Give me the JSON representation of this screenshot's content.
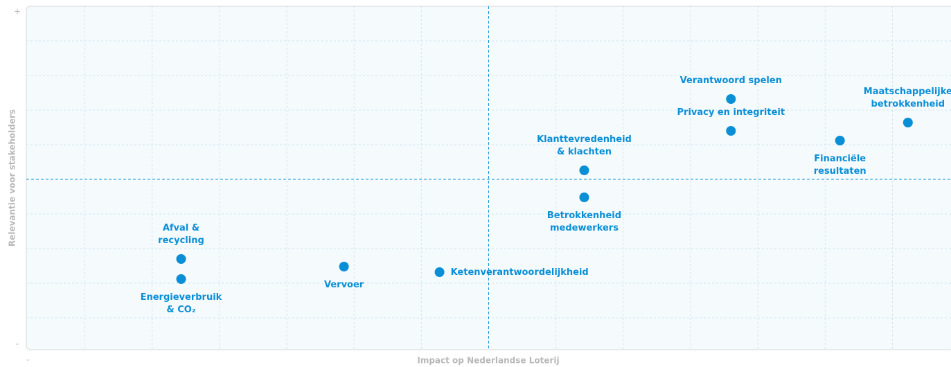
{
  "chart_data": {
    "type": "scatter",
    "xlabel": "Impact op Nederlandse Loterij",
    "ylabel": "Relevantie voor stakeholders",
    "ymax_label": "+",
    "ymin_label": "-",
    "xmin_label": "-",
    "series": [
      {
        "color": "#0a8fd6",
        "labels": [
          "Afval &\nrecycling",
          "Energieverbruik\n& CO₂",
          "Vervoer",
          "Ketenverantwoordelijkheid",
          "Klanttevredenheid\n& klachten",
          "Betrokkenheid\nmedewerkers",
          "Verantwoord spelen",
          "Privacy en integriteit",
          "Financiële\nresultaten",
          "Maatschappelijke\nbetrokkenheid"
        ],
        "x": [
          2.43,
          2.43,
          4.85,
          6.27,
          8.42,
          8.42,
          10.6,
          10.6,
          12.22,
          13.23
        ],
        "values": [
          2.7,
          2.12,
          2.48,
          2.32,
          5.26,
          4.48,
          7.32,
          6.4,
          6.12,
          6.64
        ]
      }
    ],
    "xlim": [
      0.13,
      13.87
    ],
    "ylim": [
      0,
      10
    ],
    "xgrid": [
      1,
      2,
      3,
      4,
      5,
      6,
      8,
      9,
      10,
      11,
      12,
      13
    ],
    "ygrid": [
      1,
      2,
      3,
      4,
      6,
      7,
      8,
      9
    ],
    "quadrant_x": 7,
    "quadrant_y": 5,
    "grid": true
  }
}
